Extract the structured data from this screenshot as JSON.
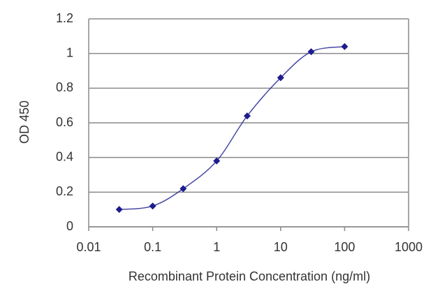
{
  "chart_data": {
    "type": "line",
    "xlabel": "Recombinant Protein Concentration (ng/ml)",
    "ylabel": "OD 450",
    "x": [
      0.03,
      0.1,
      0.3,
      1,
      3,
      10,
      30,
      100
    ],
    "values": [
      0.1,
      0.12,
      0.22,
      0.38,
      0.64,
      0.86,
      1.01,
      1.04
    ],
    "color": "#1c1c8e",
    "xlim": [
      0.01,
      1000
    ],
    "ylim": [
      0,
      1.2
    ],
    "xticks": [
      0.01,
      0.1,
      1,
      10,
      100,
      1000
    ],
    "yticks": [
      0,
      0.2,
      0.4,
      0.6,
      0.8,
      1,
      1.2
    ],
    "log_x": true,
    "grid": true
  }
}
